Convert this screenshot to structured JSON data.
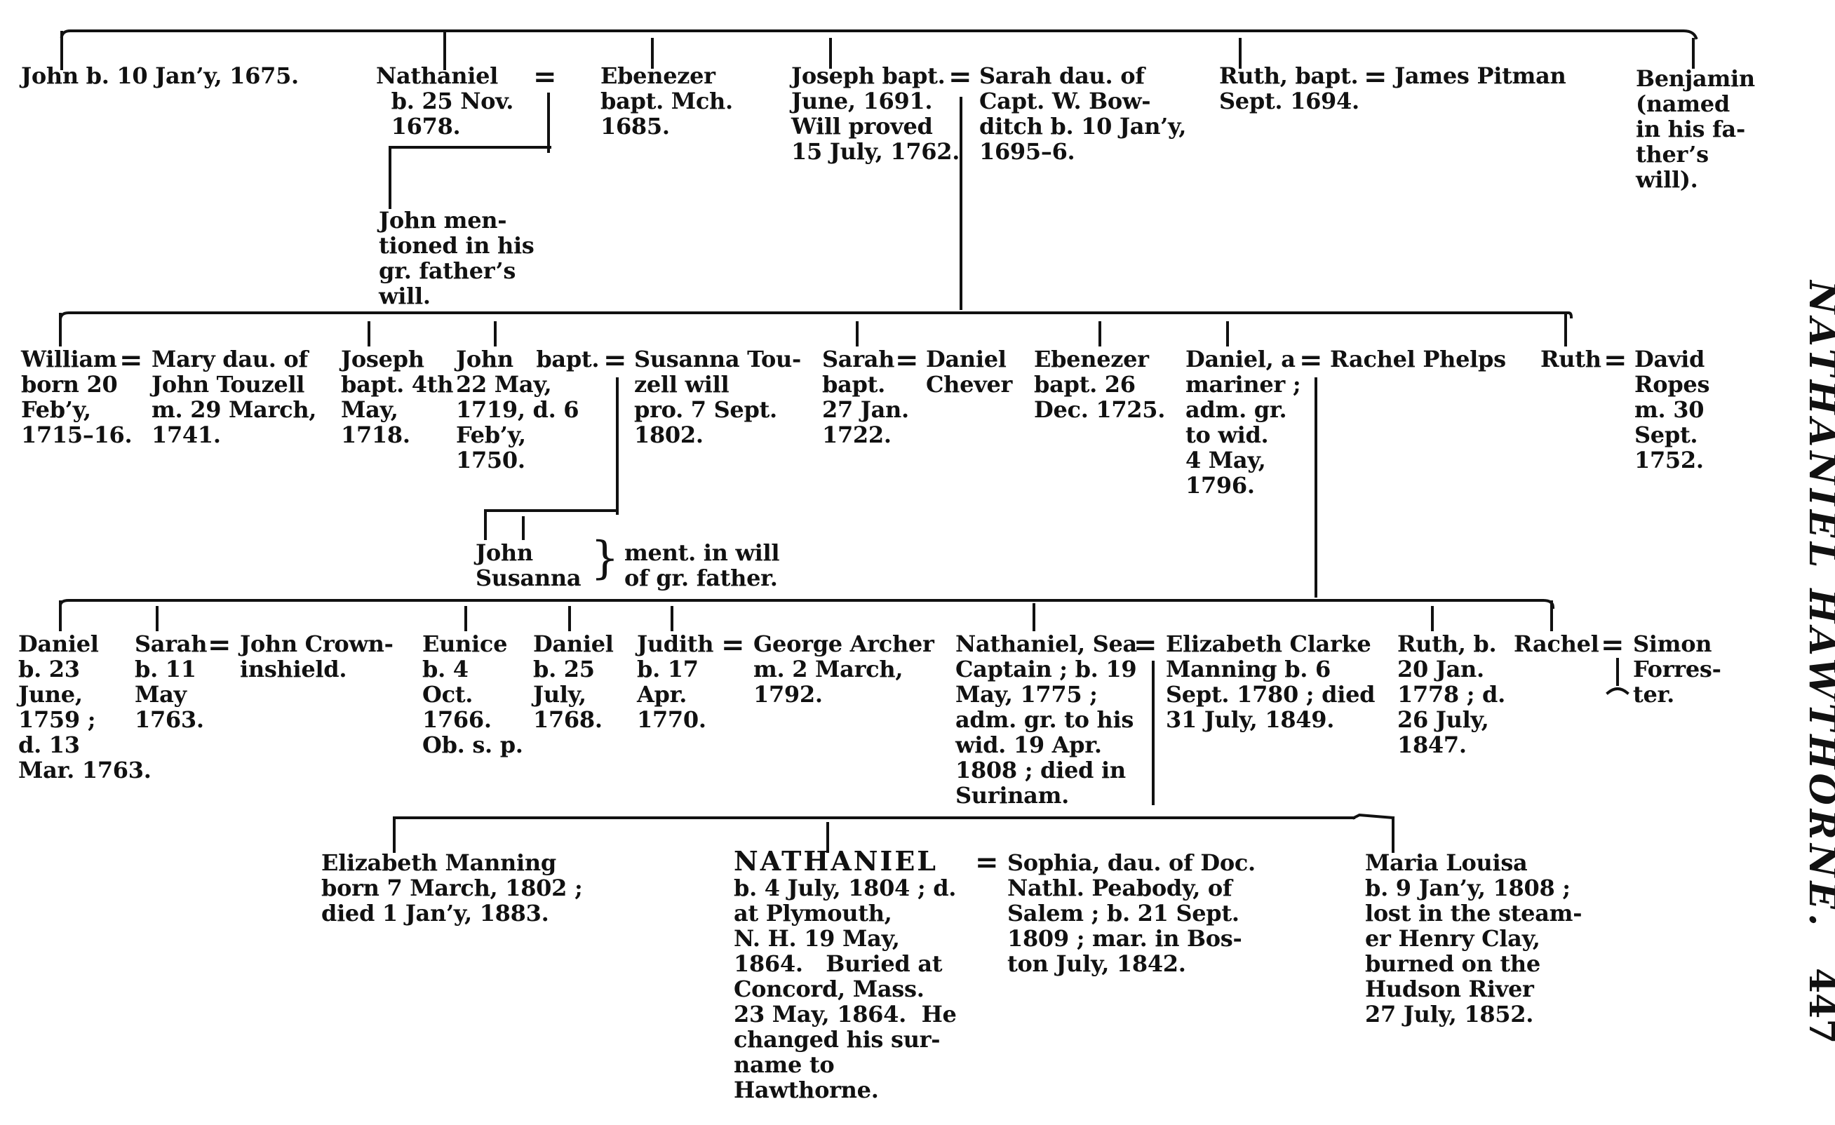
{
  "header": {
    "running_title": "NATHANIEL HAWTHORNE.",
    "page_number": "447"
  },
  "gen1": {
    "john": "John b. 10 Jan’y, 1675.",
    "nathaniel": "Nathaniel\n  b. 25 Nov.\n  1678.",
    "ebenezer": "Ebenezer\nbapt. Mch.\n1685.",
    "joseph": "Joseph bapt.\nJune, 1691.\nWill proved\n15 July, 1762.",
    "sarah": "Sarah dau. of\nCapt. W. Bow-\nditch b. 10 Jan’y,\n1695–6.",
    "ruth": "Ruth, bapt.\nSept. 1694.",
    "james_pitman": "James Pitman",
    "benjamin": "Benjamin\n(named\nin his fa-\nther’s\nwill)."
  },
  "nathaniel_child": "John men-\ntioned in his\ngr. father’s\nwill.",
  "gen2": {
    "william": "William\nborn 20\nFeb’y,\n1715–16.",
    "mary": "Mary dau. of\nJohn Touzell\nm. 29 March,\n1741.",
    "joseph": "Joseph\nbapt. 4th\nMay,\n1718.",
    "john": "John   bapt.\n22 May,\n1719, d. 6\nFeb’y,\n1750.",
    "susanna": "Susanna Tou-\nzell will\npro. 7 Sept.\n1802.",
    "sarah": "Sarah\nbapt.\n27 Jan.\n1722.",
    "daniel_chever": "Daniel\nChever",
    "ebenezer": "Ebenezer\nbapt. 26\nDec. 1725.",
    "daniel": "Daniel, a\nmariner ;\nadm. gr.\nto wid.\n4 May,\n1796.",
    "rachel_phelps": "Rachel Phelps",
    "ruth": "Ruth",
    "david_ropes": "David\nRopes\nm. 30\nSept.\n1752."
  },
  "john_children": {
    "names": "John\nSusanna",
    "note": "ment. in will\nof gr. father."
  },
  "gen3": {
    "daniel": "Daniel\nb. 23\nJune,\n1759 ;\nd. 13\nMar. 1763.",
    "sarah": "Sarah\nb. 11\nMay\n1763.",
    "john_crowninshield": "John Crown-\ninshield.",
    "eunice": "Eunice\nb. 4\nOct.\n1766.\nOb. s. p.",
    "daniel2": "Daniel\nb. 25\nJuly,\n1768.",
    "judith": "Judith\nb. 17\nApr.\n1770.",
    "george_archer": "George Archer\nm. 2 March,\n1792.",
    "nathaniel": "Nathaniel, Sea\nCaptain ; b. 19\nMay, 1775 ;\nadm. gr. to his\nwid. 19 Apr.\n1808 ; died in\nSurinam.",
    "elizabeth_clarke": "Elizabeth Clarke\nManning b. 6\nSept. 1780 ; died\n31 July, 1849.",
    "ruth": "Ruth, b.\n20 Jan.\n1778 ; d.\n26 July,\n1847.",
    "rachel": "Rachel",
    "simon": "Simon\nForres-\nter."
  },
  "gen4": {
    "elizabeth": "Elizabeth Manning\nborn 7 March, 1802 ;\ndied 1 Jan’y, 1883.",
    "nathaniel_name": "NATHANIEL",
    "nathaniel_details": "b. 4 July, 1804 ; d.\nat Plymouth,\nN. H. 19 May,\n1864.   Buried at\nConcord, Mass.\n23 May, 1864.  He\nchanged his sur-\nname to\nHawthorne.",
    "sophia": "Sophia, dau. of Doc.\nNathl. Peabody, of\nSalem ; b. 21 Sept.\n1809 ; mar. in Bos-\nton July, 1842.",
    "maria": "Maria Louisa\nb. 9 Jan’y, 1808 ;\nlost in the steam-\ner Henry Clay,\nburned on the\nHudson River\n27 July, 1852."
  },
  "symbols": {
    "equals": "=",
    "brace": "}"
  }
}
